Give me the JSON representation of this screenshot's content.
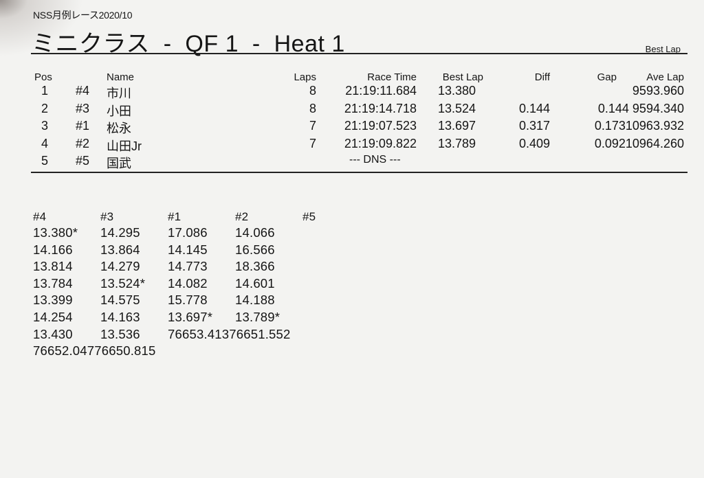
{
  "header": {
    "event": "NSS月例レース2020/10",
    "title": "ミニクラス  -  QF 1  -  Heat 1",
    "sort_label": "Best Lap"
  },
  "results": {
    "columns": [
      "Pos",
      "Name",
      "Laps",
      "Race Time",
      "Best Lap",
      "Diff",
      "Gap",
      "Ave Lap"
    ],
    "rows": [
      {
        "pos": "1",
        "num": "#4",
        "name": "市川",
        "laps": "8",
        "race_time": "21:19:11.684",
        "best_lap": "13.380",
        "diff": "",
        "gap_ave": "9593.960"
      },
      {
        "pos": "2",
        "num": "#3",
        "name": "小田",
        "laps": "8",
        "race_time": "21:19:14.718",
        "best_lap": "13.524",
        "diff": "0.144",
        "gap_ave": "0.144 9594.340"
      },
      {
        "pos": "3",
        "num": "#1",
        "name": "松永",
        "laps": "7",
        "race_time": "21:19:07.523",
        "best_lap": "13.697",
        "diff": "0.317",
        "gap_ave": "0.17310963.932"
      },
      {
        "pos": "4",
        "num": "#2",
        "name": "山田Jr",
        "laps": "7",
        "race_time": "21:19:09.822",
        "best_lap": "13.789",
        "diff": "0.409",
        "gap_ave": "0.09210964.260"
      },
      {
        "pos": "5",
        "num": "#5",
        "name": "国武",
        "laps": "",
        "race_time": "--- DNS ---",
        "best_lap": "",
        "diff": "",
        "gap_ave": ""
      }
    ]
  },
  "laps": {
    "columns": [
      "#4",
      "#3",
      "#1",
      "#2",
      "#5"
    ],
    "rows": [
      [
        "13.380*",
        "14.295",
        "17.086",
        "14.066"
      ],
      [
        "14.166",
        "13.864",
        "14.145",
        "16.566"
      ],
      [
        "13.814",
        "14.279",
        "14.773",
        "18.366"
      ],
      [
        "13.784",
        "13.524*",
        "14.082",
        "14.601"
      ],
      [
        "13.399",
        "14.575",
        "15.778",
        "14.188"
      ],
      [
        "14.254",
        "14.163",
        "13.697*",
        "13.789*"
      ],
      [
        "13.430",
        "13.536",
        "76653.41376651.552"
      ],
      [
        "76652.04776650.815"
      ]
    ]
  }
}
